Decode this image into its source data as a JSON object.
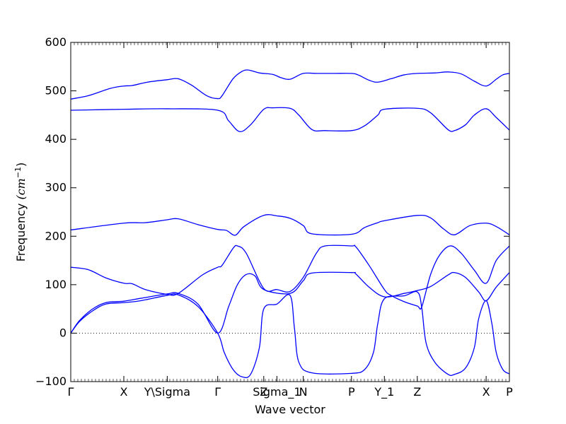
{
  "chart_data": {
    "type": "line",
    "title": "",
    "xlabel": "Wave vector",
    "ylabel": "Frequency (cm⁻¹)",
    "ylabel_main": "Frequency",
    "ylabel_unit": "(cm",
    "ylabel_exp": "−1",
    "ylabel_close": ")",
    "ylim": [
      -100,
      600
    ],
    "yticks": [
      -100,
      0,
      100,
      200,
      300,
      400,
      500,
      600
    ],
    "xlim": [
      0,
      1
    ],
    "grid": false,
    "legend": "none",
    "line_color": "#0000ff",
    "zero_line": {
      "y": 0,
      "style": "dotted"
    },
    "xticks": [
      {
        "label": "Γ",
        "x": 0.0
      },
      {
        "label": "X",
        "x": 0.121
      },
      {
        "label": "Y\\Sigma",
        "x": 0.22
      },
      {
        "label": "Γ",
        "x": 0.335
      },
      {
        "label": "Z",
        "x": 0.44
      },
      {
        "label": "Sigma_1",
        "x": 0.47
      },
      {
        "label": "N",
        "x": 0.53
      },
      {
        "label": "P",
        "x": 0.64
      },
      {
        "label": "Y_1",
        "x": 0.715
      },
      {
        "label": "Z",
        "x": 0.79
      },
      {
        "label": "X",
        "x": 0.947
      },
      {
        "label": "P",
        "x": 1.0
      }
    ],
    "series": [
      {
        "values": [
          [
            0,
            483
          ],
          [
            0.04,
            490
          ],
          [
            0.09,
            505
          ],
          [
            0.121,
            510
          ],
          [
            0.14,
            511
          ],
          [
            0.175,
            518
          ],
          [
            0.22,
            523
          ],
          [
            0.245,
            525
          ],
          [
            0.275,
            512
          ],
          [
            0.31,
            490
          ],
          [
            0.335,
            484
          ],
          [
            0.345,
            490
          ],
          [
            0.37,
            525
          ],
          [
            0.39,
            540
          ],
          [
            0.405,
            543
          ],
          [
            0.43,
            537
          ],
          [
            0.46,
            534
          ],
          [
            0.48,
            527
          ],
          [
            0.5,
            524
          ],
          [
            0.53,
            536
          ],
          [
            0.56,
            536
          ],
          [
            0.6,
            536
          ],
          [
            0.64,
            536
          ],
          [
            0.655,
            533
          ],
          [
            0.68,
            522
          ],
          [
            0.7,
            518
          ],
          [
            0.73,
            525
          ],
          [
            0.76,
            533
          ],
          [
            0.79,
            536
          ],
          [
            0.83,
            537
          ],
          [
            0.86,
            539
          ],
          [
            0.89,
            535
          ],
          [
            0.92,
            520
          ],
          [
            0.947,
            510
          ],
          [
            0.97,
            524
          ],
          [
            0.985,
            533
          ],
          [
            1.0,
            536
          ]
        ]
      },
      {
        "values": [
          [
            0,
            460
          ],
          [
            0.121,
            462
          ],
          [
            0.22,
            463
          ],
          [
            0.335,
            460
          ],
          [
            0.36,
            438
          ],
          [
            0.385,
            416
          ],
          [
            0.41,
            430
          ],
          [
            0.44,
            462
          ],
          [
            0.46,
            465
          ],
          [
            0.5,
            464
          ],
          [
            0.52,
            450
          ],
          [
            0.55,
            420
          ],
          [
            0.58,
            418
          ],
          [
            0.64,
            418
          ],
          [
            0.67,
            428
          ],
          [
            0.7,
            450
          ],
          [
            0.715,
            462
          ],
          [
            0.79,
            464
          ],
          [
            0.82,
            455
          ],
          [
            0.86,
            420
          ],
          [
            0.875,
            418
          ],
          [
            0.9,
            430
          ],
          [
            0.92,
            450
          ],
          [
            0.947,
            463
          ],
          [
            0.97,
            445
          ],
          [
            1.0,
            419
          ]
        ]
      },
      {
        "values": [
          [
            0,
            213
          ],
          [
            0.121,
            227
          ],
          [
            0.17,
            228
          ],
          [
            0.22,
            234
          ],
          [
            0.245,
            236
          ],
          [
            0.29,
            224
          ],
          [
            0.335,
            214
          ],
          [
            0.355,
            212
          ],
          [
            0.375,
            202
          ],
          [
            0.395,
            220
          ],
          [
            0.44,
            243
          ],
          [
            0.47,
            242
          ],
          [
            0.5,
            237
          ],
          [
            0.53,
            222
          ],
          [
            0.55,
            205
          ],
          [
            0.64,
            204
          ],
          [
            0.67,
            218
          ],
          [
            0.7,
            228
          ],
          [
            0.715,
            232
          ],
          [
            0.79,
            243
          ],
          [
            0.82,
            238
          ],
          [
            0.85,
            215
          ],
          [
            0.875,
            203
          ],
          [
            0.91,
            222
          ],
          [
            0.947,
            227
          ],
          [
            0.97,
            220
          ],
          [
            1.0,
            203
          ]
        ]
      },
      {
        "values": [
          [
            0,
            136
          ],
          [
            0.04,
            131
          ],
          [
            0.08,
            114
          ],
          [
            0.121,
            103
          ],
          [
            0.14,
            102
          ],
          [
            0.17,
            90
          ],
          [
            0.22,
            80
          ],
          [
            0.245,
            82
          ],
          [
            0.3,
            120
          ],
          [
            0.335,
            136
          ],
          [
            0.345,
            140
          ],
          [
            0.37,
            175
          ],
          [
            0.38,
            180
          ],
          [
            0.4,
            165
          ],
          [
            0.44,
            92
          ],
          [
            0.47,
            90
          ],
          [
            0.5,
            86
          ],
          [
            0.53,
            115
          ],
          [
            0.56,
            165
          ],
          [
            0.58,
            180
          ],
          [
            0.64,
            180
          ],
          [
            0.65,
            178
          ],
          [
            0.68,
            140
          ],
          [
            0.715,
            90
          ],
          [
            0.73,
            78
          ],
          [
            0.76,
            65
          ],
          [
            0.79,
            56
          ],
          [
            0.8,
            54
          ],
          [
            0.82,
            120
          ],
          [
            0.84,
            160
          ],
          [
            0.865,
            180
          ],
          [
            0.89,
            165
          ],
          [
            0.92,
            130
          ],
          [
            0.947,
            103
          ],
          [
            0.97,
            150
          ],
          [
            1.0,
            180
          ]
        ]
      },
      {
        "values": [
          [
            0,
            0
          ],
          [
            0.02,
            26
          ],
          [
            0.05,
            50
          ],
          [
            0.08,
            63
          ],
          [
            0.121,
            66
          ],
          [
            0.16,
            72
          ],
          [
            0.22,
            81
          ],
          [
            0.245,
            82
          ],
          [
            0.29,
            60
          ],
          [
            0.335,
            0
          ],
          [
            0.36,
            55
          ],
          [
            0.38,
            100
          ],
          [
            0.4,
            121
          ],
          [
            0.42,
            118
          ],
          [
            0.44,
            90
          ],
          [
            0.5,
            82
          ],
          [
            0.53,
            108
          ],
          [
            0.55,
            124
          ],
          [
            0.64,
            125
          ],
          [
            0.65,
            122
          ],
          [
            0.68,
            95
          ],
          [
            0.715,
            75
          ],
          [
            0.76,
            82
          ],
          [
            0.79,
            88
          ],
          [
            0.82,
            96
          ],
          [
            0.86,
            120
          ],
          [
            0.875,
            125
          ],
          [
            0.9,
            115
          ],
          [
            0.93,
            85
          ],
          [
            0.947,
            67
          ],
          [
            0.97,
            95
          ],
          [
            1.0,
            125
          ]
        ]
      },
      {
        "values": [
          [
            0,
            0
          ],
          [
            0.02,
            24
          ],
          [
            0.05,
            46
          ],
          [
            0.08,
            60
          ],
          [
            0.121,
            63
          ],
          [
            0.16,
            67
          ],
          [
            0.22,
            78
          ],
          [
            0.245,
            79
          ],
          [
            0.29,
            55
          ],
          [
            0.335,
            0
          ],
          [
            0.35,
            -40
          ],
          [
            0.37,
            -75
          ],
          [
            0.39,
            -90
          ],
          [
            0.41,
            -85
          ],
          [
            0.43,
            -30
          ],
          [
            0.44,
            50
          ],
          [
            0.47,
            60
          ],
          [
            0.5,
            78
          ],
          [
            0.51,
            10
          ],
          [
            0.52,
            -60
          ],
          [
            0.55,
            -82
          ],
          [
            0.64,
            -83
          ],
          [
            0.67,
            -75
          ],
          [
            0.69,
            -40
          ],
          [
            0.7,
            20
          ],
          [
            0.715,
            71
          ],
          [
            0.76,
            77
          ],
          [
            0.79,
            85
          ],
          [
            0.8,
            54
          ],
          [
            0.81,
            -20
          ],
          [
            0.83,
            -60
          ],
          [
            0.86,
            -85
          ],
          [
            0.875,
            -85
          ],
          [
            0.9,
            -72
          ],
          [
            0.92,
            -30
          ],
          [
            0.93,
            30
          ],
          [
            0.947,
            67
          ],
          [
            0.96,
            20
          ],
          [
            0.97,
            -40
          ],
          [
            0.985,
            -75
          ],
          [
            1.0,
            -84
          ]
        ]
      }
    ]
  }
}
